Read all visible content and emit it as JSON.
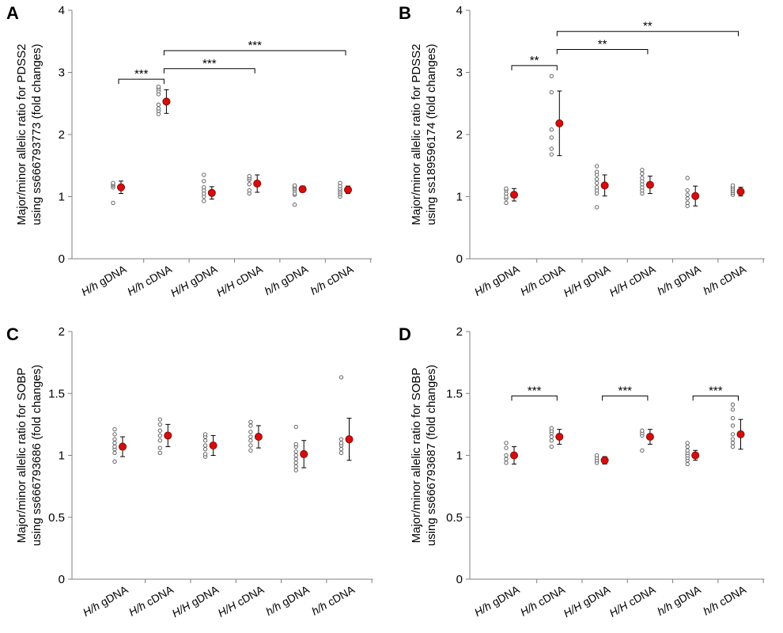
{
  "chart_data": [
    {
      "panel": "A",
      "type": "scatter",
      "ylabel_lines": [
        "Major/minor allelic ratio for PDSS2",
        "using ss666793773 (fold changes)"
      ],
      "ylim": [
        0,
        4
      ],
      "yticks": [
        0,
        1,
        2,
        3,
        4
      ],
      "ytick_labels": [
        "0",
        "1",
        "2",
        "3",
        "4"
      ],
      "categories": [
        {
          "prefix": "H/h",
          "suffix": " gDNA"
        },
        {
          "prefix": "H/h",
          "suffix": " cDNA"
        },
        {
          "prefix": "H/H",
          "suffix": " gDNA"
        },
        {
          "prefix": "H/H",
          "suffix": " cDNA"
        },
        {
          "prefix": "h/h",
          "suffix": " gDNA"
        },
        {
          "prefix": "h/h",
          "suffix": " cDNA"
        }
      ],
      "points": [
        [
          0.9,
          1.15,
          1.18,
          1.2,
          1.22
        ],
        [
          2.33,
          2.38,
          2.42,
          2.48,
          2.65,
          2.7,
          2.74,
          2.77
        ],
        [
          0.93,
          1.0,
          1.05,
          1.1,
          1.15,
          1.25,
          1.35
        ],
        [
          1.05,
          1.1,
          1.2,
          1.27,
          1.3,
          1.33
        ],
        [
          0.87,
          1.03,
          1.05,
          1.1,
          1.13,
          1.16,
          1.18
        ],
        [
          1.0,
          1.04,
          1.07,
          1.1,
          1.13,
          1.17,
          1.22
        ]
      ],
      "means": [
        1.15,
        2.53,
        1.06,
        1.21,
        1.12,
        1.11
      ],
      "errors": [
        0.1,
        0.19,
        0.1,
        0.14,
        0.05,
        0.06
      ],
      "brackets": [
        {
          "from": 0,
          "to": 1,
          "y": 2.89,
          "label": "***"
        },
        {
          "from": 1,
          "to": 3,
          "y": 3.06,
          "label": "***"
        },
        {
          "from": 1,
          "to": 5,
          "y": 3.35,
          "label": "***"
        }
      ]
    },
    {
      "panel": "B",
      "type": "scatter",
      "ylabel_lines": [
        "Major/minor allelic ratio for PDSS2",
        "using ss189596174 (fold changes)"
      ],
      "ylim": [
        0,
        4
      ],
      "yticks": [
        0,
        1,
        2,
        3,
        4
      ],
      "ytick_labels": [
        "0",
        "1",
        "2",
        "3",
        "4"
      ],
      "categories": [
        {
          "prefix": "H/h",
          "suffix": " gDNA"
        },
        {
          "prefix": "H/h",
          "suffix": " cDNA"
        },
        {
          "prefix": "H/H",
          "suffix": " gDNA"
        },
        {
          "prefix": "H/H",
          "suffix": " cDNA"
        },
        {
          "prefix": "h/h",
          "suffix": " gDNA"
        },
        {
          "prefix": "h/h",
          "suffix": " cDNA"
        }
      ],
      "points": [
        [
          0.9,
          0.97,
          1.0,
          1.05,
          1.1,
          1.13
        ],
        [
          1.68,
          1.77,
          1.95,
          2.08,
          2.68,
          2.94
        ],
        [
          0.83,
          1.05,
          1.1,
          1.15,
          1.22,
          1.28,
          1.35,
          1.4,
          1.49
        ],
        [
          1.05,
          1.1,
          1.15,
          1.2,
          1.25,
          1.3,
          1.37,
          1.43
        ],
        [
          0.85,
          0.9,
          0.97,
          1.03,
          1.1,
          1.3
        ],
        [
          1.03,
          1.06,
          1.09,
          1.12,
          1.15,
          1.18
        ]
      ],
      "means": [
        1.03,
        2.18,
        1.18,
        1.19,
        1.01,
        1.08
      ],
      "errors": [
        0.1,
        0.52,
        0.17,
        0.14,
        0.16,
        0.07
      ],
      "brackets": [
        {
          "from": 0,
          "to": 1,
          "y": 3.11,
          "label": "**"
        },
        {
          "from": 1,
          "to": 3,
          "y": 3.37,
          "label": "**"
        },
        {
          "from": 1,
          "to": 5,
          "y": 3.66,
          "label": "**"
        }
      ]
    },
    {
      "panel": "C",
      "type": "scatter",
      "ylabel_lines": [
        "Major/minor allelic ratio for SOBP",
        "using ss666793686 (fold changes)"
      ],
      "ylim": [
        0,
        2
      ],
      "yticks": [
        0,
        0.5,
        1,
        1.5,
        2
      ],
      "ytick_labels": [
        "0",
        "0.5",
        "1",
        "1.5",
        "2"
      ],
      "categories": [
        {
          "prefix": "H/h",
          "suffix": " gDNA"
        },
        {
          "prefix": "H/h",
          "suffix": " cDNA"
        },
        {
          "prefix": "H/H",
          "suffix": " gDNA"
        },
        {
          "prefix": "H/H",
          "suffix": " cDNA"
        },
        {
          "prefix": "h/h",
          "suffix": " gDNA"
        },
        {
          "prefix": "h/h",
          "suffix": " cDNA"
        }
      ],
      "points": [
        [
          0.95,
          1.02,
          1.05,
          1.07,
          1.1,
          1.13,
          1.17,
          1.21
        ],
        [
          1.02,
          1.06,
          1.12,
          1.16,
          1.2,
          1.25,
          1.29
        ],
        [
          0.99,
          1.01,
          1.05,
          1.08,
          1.12,
          1.15,
          1.17
        ],
        [
          1.04,
          1.08,
          1.12,
          1.15,
          1.19,
          1.24,
          1.27
        ],
        [
          0.88,
          0.91,
          0.94,
          0.97,
          1.0,
          1.03,
          1.07,
          1.09,
          1.23
        ],
        [
          1.02,
          1.05,
          1.08,
          1.1,
          1.13,
          1.63
        ]
      ],
      "means": [
        1.07,
        1.16,
        1.08,
        1.15,
        1.01,
        1.13
      ],
      "errors": [
        0.08,
        0.09,
        0.08,
        0.09,
        0.11,
        0.17
      ],
      "brackets": []
    },
    {
      "panel": "D",
      "type": "scatter",
      "ylabel_lines": [
        "Major/minor allelic ratio for SOBP",
        "using ss666793687 (fold changes)"
      ],
      "ylim": [
        0,
        2
      ],
      "yticks": [
        0,
        0.5,
        1,
        1.5,
        2
      ],
      "ytick_labels": [
        "0",
        "0.5",
        "1",
        "1.5",
        "2"
      ],
      "categories": [
        {
          "prefix": "H/h",
          "suffix": " gDNA"
        },
        {
          "prefix": "H/h",
          "suffix": " cDNA"
        },
        {
          "prefix": "H/H",
          "suffix": " gDNA"
        },
        {
          "prefix": "H/H",
          "suffix": " cDNA"
        },
        {
          "prefix": "h/h",
          "suffix": " gDNA"
        },
        {
          "prefix": "h/h",
          "suffix": " cDNA"
        }
      ],
      "points": [
        [
          0.94,
          0.97,
          1.0,
          1.06,
          1.1
        ],
        [
          1.07,
          1.12,
          1.15,
          1.18,
          1.2,
          1.22
        ],
        [
          0.94,
          0.96,
          0.98,
          1.0
        ],
        [
          1.04,
          1.16,
          1.18,
          1.2
        ],
        [
          0.93,
          0.96,
          0.98,
          1.0,
          1.02,
          1.04,
          1.07,
          1.1
        ],
        [
          1.07,
          1.1,
          1.13,
          1.17,
          1.24,
          1.3,
          1.37,
          1.41
        ]
      ],
      "means": [
        1.0,
        1.15,
        0.96,
        1.15,
        1.0,
        1.17
      ],
      "errors": [
        0.07,
        0.06,
        0.03,
        0.06,
        0.04,
        0.12
      ],
      "brackets": [
        {
          "from": 0,
          "to": 1,
          "y": 1.48,
          "label": "***"
        },
        {
          "from": 2,
          "to": 3,
          "y": 1.48,
          "label": "***"
        },
        {
          "from": 4,
          "to": 5,
          "y": 1.48,
          "label": "***"
        }
      ]
    }
  ],
  "colors": {
    "mean_fill": "#d40d0d",
    "mean_stroke": "#7a0000",
    "point_stroke": "#555555",
    "axis": "#808080",
    "bracket": "#000000"
  }
}
